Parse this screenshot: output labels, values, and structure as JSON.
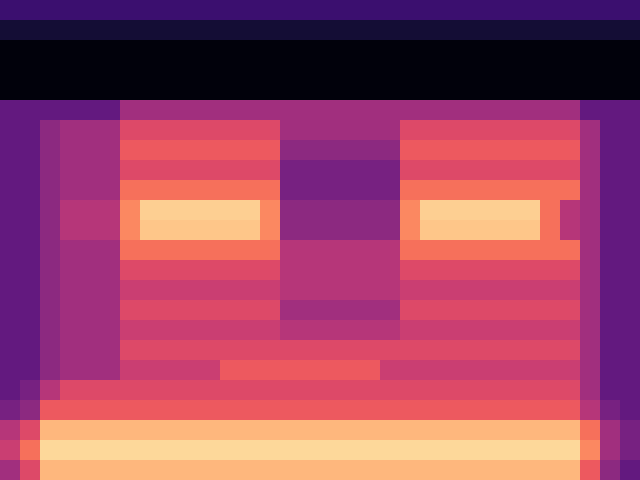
{
  "chart_data": {
    "type": "heatmap",
    "clim": [
      0,
      1
    ],
    "tick_labels": false,
    "cells": [
      [
        0.2,
        0.2,
        0.2,
        0.2,
        0.2,
        0.2,
        0.2,
        0.2,
        0.2,
        0.2,
        0.2,
        0.2,
        0.2,
        0.2,
        0.2,
        0.2,
        0.2,
        0.2,
        0.2,
        0.2,
        0.2,
        0.2,
        0.2,
        0.2,
        0.2,
        0.2,
        0.2,
        0.2,
        0.2,
        0.2,
        0.2,
        0.2
      ],
      [
        0.1,
        0.1,
        0.1,
        0.1,
        0.1,
        0.1,
        0.1,
        0.1,
        0.1,
        0.1,
        0.1,
        0.1,
        0.1,
        0.1,
        0.1,
        0.1,
        0.1,
        0.1,
        0.1,
        0.1,
        0.1,
        0.1,
        0.1,
        0.1,
        0.1,
        0.1,
        0.1,
        0.1,
        0.1,
        0.1,
        0.1,
        0.1
      ],
      [
        0.02,
        0.02,
        0.02,
        0.02,
        0.02,
        0.02,
        0.02,
        0.02,
        0.02,
        0.02,
        0.02,
        0.02,
        0.02,
        0.02,
        0.02,
        0.02,
        0.02,
        0.02,
        0.02,
        0.02,
        0.02,
        0.02,
        0.02,
        0.02,
        0.02,
        0.02,
        0.02,
        0.02,
        0.02,
        0.02,
        0.02,
        0.02
      ],
      [
        0.02,
        0.02,
        0.02,
        0.02,
        0.02,
        0.02,
        0.02,
        0.02,
        0.02,
        0.02,
        0.02,
        0.02,
        0.02,
        0.02,
        0.02,
        0.02,
        0.02,
        0.02,
        0.02,
        0.02,
        0.02,
        0.02,
        0.02,
        0.02,
        0.02,
        0.02,
        0.02,
        0.02,
        0.02,
        0.02,
        0.02,
        0.02
      ],
      [
        0.02,
        0.02,
        0.02,
        0.02,
        0.02,
        0.02,
        0.02,
        0.02,
        0.02,
        0.02,
        0.02,
        0.02,
        0.02,
        0.02,
        0.02,
        0.02,
        0.02,
        0.02,
        0.02,
        0.02,
        0.02,
        0.02,
        0.02,
        0.02,
        0.02,
        0.02,
        0.02,
        0.02,
        0.02,
        0.02,
        0.02,
        0.02
      ],
      [
        0.3,
        0.3,
        0.3,
        0.3,
        0.3,
        0.3,
        0.45,
        0.45,
        0.45,
        0.45,
        0.45,
        0.45,
        0.45,
        0.45,
        0.45,
        0.45,
        0.45,
        0.45,
        0.45,
        0.45,
        0.45,
        0.45,
        0.45,
        0.45,
        0.45,
        0.45,
        0.45,
        0.45,
        0.45,
        0.3,
        0.3,
        0.3
      ],
      [
        0.3,
        0.3,
        0.4,
        0.45,
        0.45,
        0.45,
        0.6,
        0.6,
        0.6,
        0.6,
        0.6,
        0.6,
        0.6,
        0.6,
        0.45,
        0.45,
        0.45,
        0.45,
        0.45,
        0.45,
        0.6,
        0.6,
        0.6,
        0.6,
        0.6,
        0.6,
        0.6,
        0.6,
        0.6,
        0.45,
        0.3,
        0.3
      ],
      [
        0.3,
        0.3,
        0.4,
        0.45,
        0.45,
        0.45,
        0.65,
        0.65,
        0.65,
        0.65,
        0.65,
        0.65,
        0.65,
        0.65,
        0.4,
        0.4,
        0.4,
        0.4,
        0.4,
        0.4,
        0.65,
        0.65,
        0.65,
        0.65,
        0.65,
        0.65,
        0.65,
        0.65,
        0.65,
        0.45,
        0.3,
        0.3
      ],
      [
        0.3,
        0.3,
        0.4,
        0.45,
        0.45,
        0.45,
        0.6,
        0.6,
        0.6,
        0.6,
        0.6,
        0.6,
        0.6,
        0.6,
        0.35,
        0.35,
        0.35,
        0.35,
        0.35,
        0.35,
        0.6,
        0.6,
        0.6,
        0.6,
        0.6,
        0.6,
        0.6,
        0.6,
        0.6,
        0.45,
        0.3,
        0.3
      ],
      [
        0.3,
        0.3,
        0.4,
        0.45,
        0.45,
        0.45,
        0.7,
        0.7,
        0.7,
        0.7,
        0.7,
        0.7,
        0.7,
        0.7,
        0.35,
        0.35,
        0.35,
        0.35,
        0.35,
        0.35,
        0.7,
        0.7,
        0.7,
        0.7,
        0.7,
        0.7,
        0.7,
        0.7,
        0.7,
        0.45,
        0.3,
        0.3
      ],
      [
        0.3,
        0.3,
        0.4,
        0.5,
        0.5,
        0.5,
        0.75,
        0.9,
        0.9,
        0.9,
        0.9,
        0.9,
        0.9,
        0.75,
        0.4,
        0.4,
        0.4,
        0.4,
        0.4,
        0.4,
        0.75,
        0.9,
        0.9,
        0.9,
        0.9,
        0.9,
        0.9,
        0.7,
        0.5,
        0.45,
        0.3,
        0.3
      ],
      [
        0.3,
        0.3,
        0.4,
        0.5,
        0.5,
        0.5,
        0.75,
        0.88,
        0.88,
        0.88,
        0.88,
        0.88,
        0.88,
        0.75,
        0.4,
        0.4,
        0.4,
        0.4,
        0.4,
        0.4,
        0.75,
        0.88,
        0.88,
        0.88,
        0.88,
        0.88,
        0.88,
        0.7,
        0.5,
        0.45,
        0.3,
        0.3
      ],
      [
        0.3,
        0.3,
        0.4,
        0.45,
        0.45,
        0.45,
        0.7,
        0.7,
        0.7,
        0.7,
        0.7,
        0.7,
        0.7,
        0.7,
        0.5,
        0.5,
        0.5,
        0.5,
        0.5,
        0.5,
        0.7,
        0.7,
        0.7,
        0.7,
        0.7,
        0.7,
        0.7,
        0.7,
        0.7,
        0.45,
        0.3,
        0.3
      ],
      [
        0.3,
        0.3,
        0.4,
        0.45,
        0.45,
        0.45,
        0.6,
        0.6,
        0.6,
        0.6,
        0.6,
        0.6,
        0.6,
        0.6,
        0.5,
        0.5,
        0.5,
        0.5,
        0.5,
        0.5,
        0.6,
        0.6,
        0.6,
        0.6,
        0.6,
        0.6,
        0.6,
        0.6,
        0.6,
        0.45,
        0.3,
        0.3
      ],
      [
        0.3,
        0.3,
        0.4,
        0.45,
        0.45,
        0.45,
        0.55,
        0.55,
        0.55,
        0.55,
        0.55,
        0.55,
        0.55,
        0.55,
        0.5,
        0.5,
        0.5,
        0.5,
        0.5,
        0.5,
        0.55,
        0.55,
        0.55,
        0.55,
        0.55,
        0.55,
        0.55,
        0.55,
        0.55,
        0.45,
        0.3,
        0.3
      ],
      [
        0.3,
        0.3,
        0.4,
        0.45,
        0.45,
        0.45,
        0.6,
        0.6,
        0.6,
        0.6,
        0.6,
        0.6,
        0.6,
        0.6,
        0.45,
        0.45,
        0.45,
        0.45,
        0.45,
        0.45,
        0.6,
        0.6,
        0.6,
        0.6,
        0.6,
        0.6,
        0.6,
        0.6,
        0.6,
        0.45,
        0.3,
        0.3
      ],
      [
        0.3,
        0.3,
        0.4,
        0.45,
        0.45,
        0.45,
        0.55,
        0.55,
        0.55,
        0.55,
        0.55,
        0.55,
        0.55,
        0.55,
        0.5,
        0.5,
        0.5,
        0.5,
        0.5,
        0.5,
        0.55,
        0.55,
        0.55,
        0.55,
        0.55,
        0.55,
        0.55,
        0.55,
        0.55,
        0.45,
        0.3,
        0.3
      ],
      [
        0.3,
        0.3,
        0.4,
        0.45,
        0.45,
        0.45,
        0.6,
        0.6,
        0.6,
        0.6,
        0.6,
        0.6,
        0.6,
        0.6,
        0.6,
        0.6,
        0.6,
        0.6,
        0.6,
        0.6,
        0.6,
        0.6,
        0.6,
        0.6,
        0.6,
        0.6,
        0.6,
        0.6,
        0.6,
        0.45,
        0.3,
        0.3
      ],
      [
        0.3,
        0.3,
        0.4,
        0.45,
        0.45,
        0.45,
        0.55,
        0.55,
        0.55,
        0.55,
        0.55,
        0.65,
        0.65,
        0.65,
        0.65,
        0.65,
        0.65,
        0.65,
        0.65,
        0.55,
        0.55,
        0.55,
        0.55,
        0.55,
        0.55,
        0.55,
        0.55,
        0.55,
        0.55,
        0.45,
        0.3,
        0.3
      ],
      [
        0.3,
        0.35,
        0.5,
        0.6,
        0.6,
        0.6,
        0.6,
        0.6,
        0.6,
        0.6,
        0.6,
        0.6,
        0.6,
        0.6,
        0.6,
        0.6,
        0.6,
        0.6,
        0.6,
        0.6,
        0.6,
        0.6,
        0.6,
        0.6,
        0.6,
        0.6,
        0.6,
        0.6,
        0.6,
        0.45,
        0.3,
        0.3
      ],
      [
        0.35,
        0.4,
        0.65,
        0.65,
        0.65,
        0.65,
        0.65,
        0.65,
        0.65,
        0.65,
        0.65,
        0.65,
        0.65,
        0.65,
        0.65,
        0.65,
        0.65,
        0.65,
        0.65,
        0.65,
        0.65,
        0.65,
        0.65,
        0.65,
        0.65,
        0.65,
        0.65,
        0.65,
        0.65,
        0.5,
        0.35,
        0.3
      ],
      [
        0.5,
        0.6,
        0.85,
        0.85,
        0.85,
        0.85,
        0.85,
        0.85,
        0.85,
        0.85,
        0.85,
        0.85,
        0.85,
        0.85,
        0.85,
        0.85,
        0.85,
        0.85,
        0.85,
        0.85,
        0.85,
        0.85,
        0.85,
        0.85,
        0.85,
        0.85,
        0.85,
        0.85,
        0.85,
        0.7,
        0.45,
        0.35
      ],
      [
        0.55,
        0.7,
        0.92,
        0.92,
        0.92,
        0.92,
        0.92,
        0.92,
        0.92,
        0.92,
        0.92,
        0.92,
        0.92,
        0.92,
        0.92,
        0.92,
        0.92,
        0.92,
        0.92,
        0.92,
        0.92,
        0.92,
        0.92,
        0.92,
        0.92,
        0.92,
        0.92,
        0.92,
        0.92,
        0.75,
        0.45,
        0.35
      ],
      [
        0.45,
        0.6,
        0.85,
        0.85,
        0.85,
        0.85,
        0.85,
        0.85,
        0.85,
        0.85,
        0.85,
        0.85,
        0.85,
        0.85,
        0.85,
        0.85,
        0.85,
        0.85,
        0.85,
        0.85,
        0.85,
        0.85,
        0.85,
        0.85,
        0.85,
        0.85,
        0.85,
        0.85,
        0.85,
        0.65,
        0.4,
        0.3
      ]
    ]
  }
}
